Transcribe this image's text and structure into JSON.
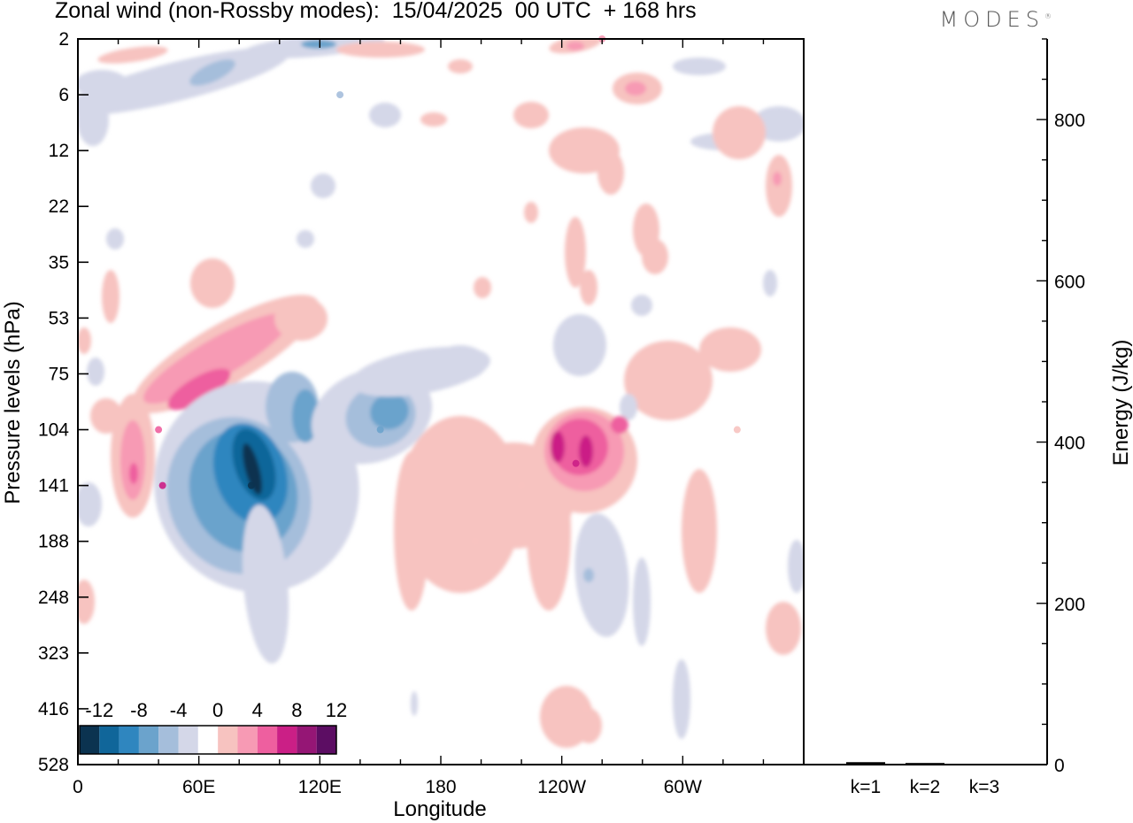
{
  "header": {
    "title": "Zonal wind (non-Rossby modes):  15/04/2025  00 UTC  + 168 hrs",
    "brand": "MODES",
    "brand_mark": "®"
  },
  "colors": {
    "neg": [
      "#0b3350",
      "#10669a",
      "#2f86bf",
      "#6ba3cc",
      "#a5bedb",
      "#d4d7e8"
    ],
    "zero": "#ffffff",
    "pos": [
      "#f7c3c0",
      "#f79ab4",
      "#ee5f9f",
      "#cb1f86",
      "#951675",
      "#5c0d63"
    ]
  },
  "chart_data": [
    {
      "type": "heatmap",
      "title": "",
      "xlabel": "Longitude",
      "ylabel": "Pressure levels (hPa)",
      "x_ticks": [
        "0",
        "60E",
        "120E",
        "180",
        "120W",
        "60W"
      ],
      "y_ticks": [
        "2",
        "6",
        "12",
        "22",
        "35",
        "53",
        "75",
        "104",
        "141",
        "188",
        "248",
        "323",
        "416",
        "528"
      ],
      "colorbar": {
        "labels": [
          "-12",
          "-8",
          "-4",
          "0",
          "4",
          "8",
          "12"
        ],
        "levels": [
          -12,
          -10,
          -8,
          -6,
          -4,
          -2,
          2,
          4,
          6,
          8,
          10,
          12
        ]
      },
      "features": [
        {
          "lon": 86,
          "level": 141,
          "value": -14
        },
        {
          "lon": 130,
          "level": 6,
          "value": -5
        },
        {
          "lon": 150,
          "level": 104,
          "value": -7
        },
        {
          "lon": 40,
          "level": 104,
          "value": 8
        },
        {
          "lon": 42,
          "level": 141,
          "value": 9
        },
        {
          "lon": 247,
          "level": 125,
          "value": 10
        },
        {
          "lon": 260,
          "level": 2,
          "value": 6
        },
        {
          "lon": 197,
          "level": 188,
          "value": 3
        },
        {
          "lon": 252,
          "level": 416,
          "value": 3
        },
        {
          "lon": 220,
          "level": 141,
          "value": 3
        },
        {
          "lon": 327,
          "level": 104,
          "value": 3
        }
      ]
    },
    {
      "type": "bar",
      "title": "",
      "xlabel": "",
      "ylabel": "Energy (J/kg)",
      "categories": [
        "k=1",
        "k=2",
        "k=3"
      ],
      "values": [
        3,
        2,
        1
      ],
      "ylim": [
        0,
        900
      ],
      "y_ticks": [
        "0",
        "200",
        "400",
        "600",
        "800"
      ]
    }
  ]
}
